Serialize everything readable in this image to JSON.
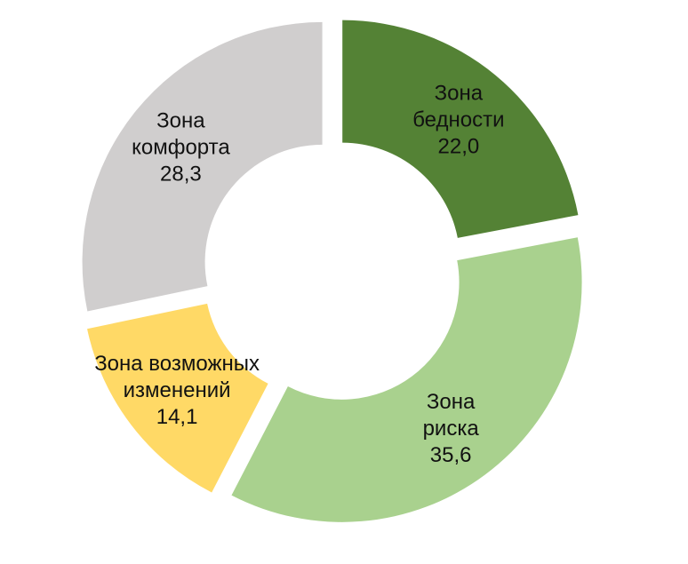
{
  "chart_data": {
    "type": "pie",
    "variant": "donut",
    "title": "",
    "slices": [
      {
        "name": "Зона бедности",
        "label_lines": [
          "Зона",
          "бедности"
        ],
        "value_label": "22,0",
        "value": 22.0,
        "color": "#548235"
      },
      {
        "name": "Зона риска",
        "label_lines": [
          "Зона",
          "риска"
        ],
        "value_label": "35,6",
        "value": 35.6,
        "color": "#A9D18E"
      },
      {
        "name": "Зона возможных изменений",
        "label_lines": [
          "Зона возможных",
          "изменений"
        ],
        "value_label": "14,1",
        "value": 14.1,
        "color": "#FFD966"
      },
      {
        "name": "Зона комфорта",
        "label_lines": [
          "Зона",
          "комфорта"
        ],
        "value_label": "28,3",
        "value": 28.3,
        "color": "#D0CECE"
      }
    ],
    "start_angle_deg": 0,
    "direction": "clockwise",
    "exploded": true,
    "legend": "none"
  }
}
